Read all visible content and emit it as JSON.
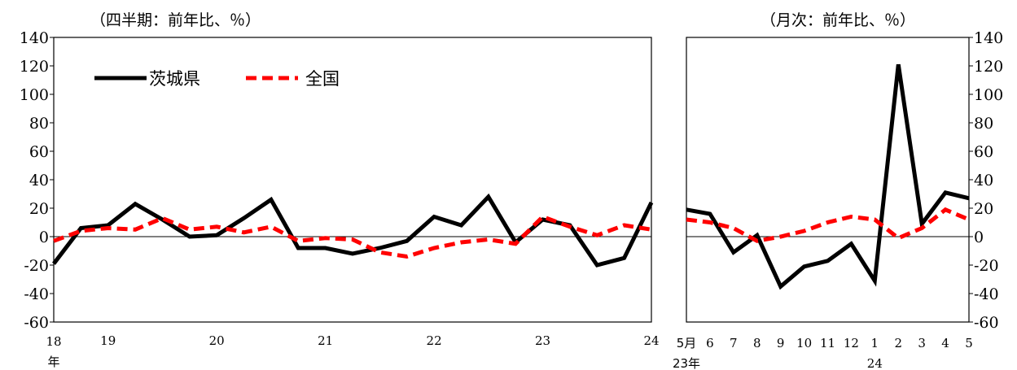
{
  "chart_data": [
    {
      "type": "line",
      "title": "（四半期：前年比、％）",
      "ylim": [
        -60,
        140
      ],
      "yticks": [
        -60,
        -40,
        -20,
        0,
        20,
        40,
        60,
        80,
        100,
        120,
        140
      ],
      "x_start_label": "18",
      "x_year_suffix": "年",
      "x_labels": [
        "19",
        "20",
        "21",
        "22",
        "23",
        "24"
      ],
      "legend_position": "top-left",
      "series": [
        {
          "name": "茨城県",
          "color": "#000000",
          "style": "solid",
          "values": [
            -19,
            6,
            8,
            23,
            12,
            0,
            1,
            13,
            26,
            -8,
            -8,
            -12,
            -8,
            -3,
            14,
            8,
            28,
            -4,
            12,
            8,
            -20,
            -15,
            24
          ]
        },
        {
          "name": "全国",
          "color": "#ff0000",
          "style": "dashed",
          "values": [
            -3,
            4,
            6,
            5,
            13,
            5,
            7,
            3,
            7,
            -3,
            -1,
            -2,
            -11,
            -14,
            -8,
            -4,
            -2,
            -5,
            14,
            7,
            1,
            8,
            5
          ]
        }
      ]
    },
    {
      "type": "line",
      "title": "（月次：前年比、％）",
      "ylim": [
        -60,
        140
      ],
      "yticks": [
        -60,
        -40,
        -20,
        0,
        20,
        40,
        60,
        80,
        100,
        120,
        140
      ],
      "categories": [
        "5月",
        "6",
        "7",
        "8",
        "9",
        "10",
        "11",
        "12",
        "1",
        "2",
        "3",
        "4",
        "5"
      ],
      "year_labels": [
        "23年",
        "24"
      ],
      "series": [
        {
          "name": "茨城県",
          "color": "#000000",
          "style": "solid",
          "values": [
            19,
            16,
            -11,
            1,
            -35,
            -21,
            -17,
            -5,
            -31,
            121,
            9,
            31,
            27
          ]
        },
        {
          "name": "全国",
          "color": "#ff0000",
          "style": "dashed",
          "values": [
            12,
            10,
            6,
            -3,
            0,
            4,
            10,
            14,
            12,
            -1,
            6,
            19,
            12
          ]
        }
      ]
    }
  ]
}
